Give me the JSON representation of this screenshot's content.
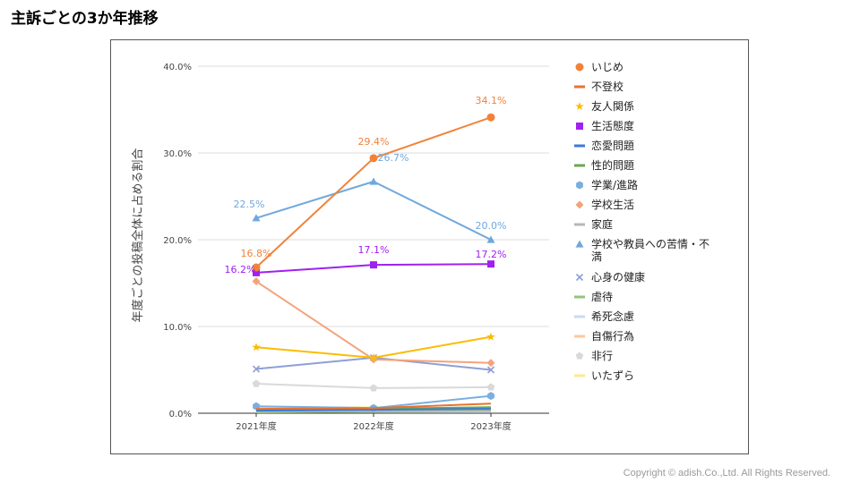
{
  "page": {
    "title": "主訴ごとの3か年推移",
    "copyright": "Copyright © adish.Co.,Ltd.  All Rights Reserved."
  },
  "chart_data": {
    "type": "line",
    "title": "",
    "xlabel": "",
    "ylabel": "年度ごとの投稿全体に占める割合",
    "ylim": [
      0,
      40
    ],
    "yticks": [
      "0.0%",
      "10.0%",
      "20.0%",
      "30.0%",
      "40.0%"
    ],
    "categories": [
      "2021年度",
      "2022年度",
      "2023年度"
    ],
    "grid": true,
    "legend_position": "right",
    "series": [
      {
        "name": "いじめ",
        "values": [
          16.8,
          29.4,
          34.1
        ],
        "color": "#f0833a",
        "marker": "circle",
        "labels": [
          "16.8%",
          "29.4%",
          "34.1%"
        ]
      },
      {
        "name": "不登校",
        "values": [
          0.5,
          0.6,
          1.1
        ],
        "color": "#e8732e",
        "marker": "dash"
      },
      {
        "name": "友人関係",
        "values": [
          7.6,
          6.4,
          8.8
        ],
        "color": "#fbbc04",
        "marker": "star"
      },
      {
        "name": "生活態度",
        "values": [
          16.2,
          17.1,
          17.2
        ],
        "color": "#a020f0",
        "marker": "square",
        "labels": [
          "16.2%",
          "17.1%",
          "17.2%"
        ]
      },
      {
        "name": "恋愛問題",
        "values": [
          0.3,
          0.4,
          0.5
        ],
        "color": "#3c78d8",
        "marker": "dash"
      },
      {
        "name": "性的問題",
        "values": [
          0.4,
          0.5,
          0.7
        ],
        "color": "#6aa84f",
        "marker": "dash"
      },
      {
        "name": "学業/進路",
        "values": [
          0.8,
          0.6,
          2.0
        ],
        "color": "#7aaee0",
        "marker": "hexagon"
      },
      {
        "name": "学校生活",
        "values": [
          15.2,
          6.2,
          5.8
        ],
        "color": "#f4a37a",
        "marker": "diamond"
      },
      {
        "name": "家庭",
        "values": [
          0.2,
          0.3,
          0.4
        ],
        "color": "#b7b7b7",
        "marker": "dash"
      },
      {
        "name": "学校や教員への苦情・不満",
        "values": [
          22.5,
          26.7,
          20.0
        ],
        "color": "#6fa8dc",
        "marker": "triangle",
        "labels": [
          "22.5%",
          "26.7%",
          "20.0%"
        ]
      },
      {
        "name": "心身の健康",
        "values": [
          5.1,
          6.4,
          5.0
        ],
        "color": "#8e9fd6",
        "marker": "x"
      },
      {
        "name": "虐待",
        "values": [
          0.1,
          0.2,
          0.3
        ],
        "color": "#93c47d",
        "marker": "dash"
      },
      {
        "name": "希死念慮",
        "values": [
          0.3,
          0.2,
          0.2
        ],
        "color": "#c9daf8",
        "marker": "dash"
      },
      {
        "name": "自傷行為",
        "values": [
          0.2,
          0.3,
          0.3
        ],
        "color": "#fbc89c",
        "marker": "dash"
      },
      {
        "name": "非行",
        "values": [
          3.4,
          2.9,
          3.0
        ],
        "color": "#d9d9d9",
        "marker": "pentagon"
      },
      {
        "name": "いたずら",
        "values": [
          0.6,
          0.7,
          0.5
        ],
        "color": "#fde98e",
        "marker": "dash"
      }
    ]
  }
}
